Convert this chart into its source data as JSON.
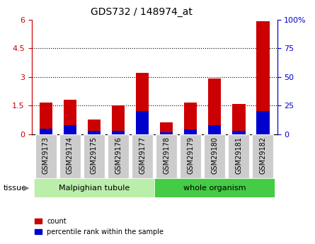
{
  "title": "GDS732 / 148974_at",
  "categories": [
    "GSM29173",
    "GSM29174",
    "GSM29175",
    "GSM29176",
    "GSM29177",
    "GSM29178",
    "GSM29179",
    "GSM29180",
    "GSM29181",
    "GSM29182"
  ],
  "count_values": [
    1.65,
    1.82,
    0.78,
    1.5,
    3.22,
    0.63,
    1.65,
    2.9,
    1.6,
    5.9
  ],
  "percentile_values": [
    5,
    8,
    3,
    3,
    20,
    2,
    4,
    8,
    3,
    20
  ],
  "group1_label": "Malpighian tubule",
  "group2_label": "whole organism",
  "group1_count": 5,
  "group2_count": 5,
  "left_ylim": [
    0,
    6
  ],
  "right_ylim": [
    0,
    100
  ],
  "left_yticks": [
    0,
    1.5,
    3.0,
    4.5,
    6.0
  ],
  "left_yticklabels": [
    "0",
    "1.5",
    "3",
    "4.5",
    "6"
  ],
  "right_yticks": [
    0,
    25,
    50,
    75,
    100
  ],
  "right_yticklabels": [
    "0",
    "25",
    "50",
    "75",
    "100%"
  ],
  "dotted_lines": [
    1.5,
    3.0,
    4.5
  ],
  "bar_color_red": "#cc0000",
  "bar_color_blue": "#0000cc",
  "group1_bg": "#bbeeaa",
  "group2_bg": "#44cc44",
  "tick_bg": "#cccccc",
  "legend_count_label": "count",
  "legend_pct_label": "percentile rank within the sample",
  "tissue_label": "tissue",
  "bar_width": 0.55
}
